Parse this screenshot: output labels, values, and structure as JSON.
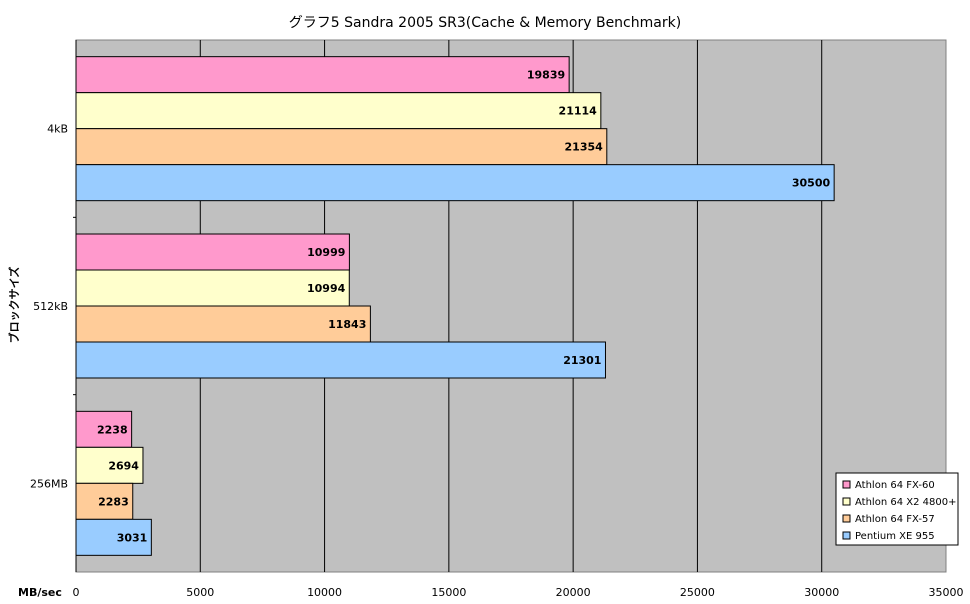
{
  "chart_data": {
    "type": "bar",
    "orientation": "horizontal",
    "title": "グラフ5 Sandra 2005 SR3(Cache & Memory Benchmark)",
    "ylabel": "ブロックサイズ",
    "xlabel": "MB/sec",
    "xlim": [
      0,
      35000
    ],
    "xticks": [
      0,
      5000,
      10000,
      15000,
      20000,
      25000,
      30000,
      35000
    ],
    "categories": [
      "4kB",
      "512kB",
      "256MB"
    ],
    "grid": true,
    "legend_position": "bottom-right",
    "series": [
      {
        "name": "Athlon 64 FX-60",
        "color": "#ff99cc",
        "values": [
          19839,
          10999,
          2238
        ]
      },
      {
        "name": "Athlon 64 X2 4800+",
        "color": "#ffffcc",
        "values": [
          21114,
          10994,
          2694
        ]
      },
      {
        "name": "Athlon 64 FX-57",
        "color": "#ffcc99",
        "values": [
          21354,
          11843,
          2283
        ]
      },
      {
        "name": "Pentium XE 955",
        "color": "#99ccff",
        "values": [
          30500,
          21301,
          3031
        ]
      }
    ],
    "plot_background": "#c0c0c0"
  }
}
